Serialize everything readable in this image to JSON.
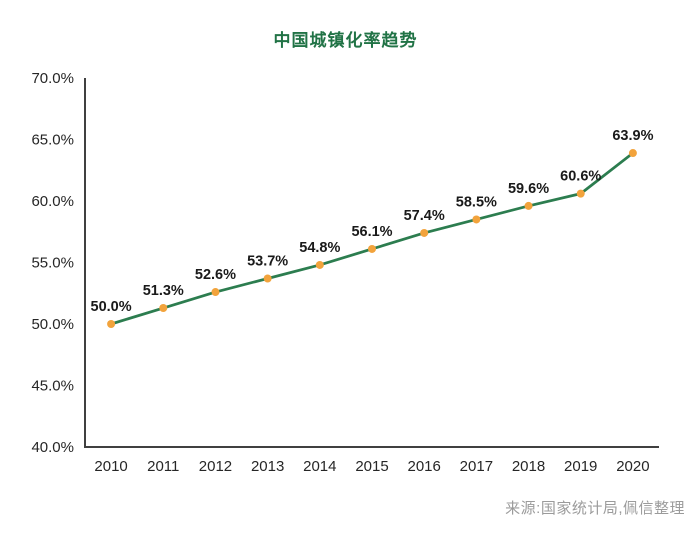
{
  "title": "中国城镇化率趋势",
  "source": "来源:国家统计局,佩信整理",
  "colors": {
    "title": "#217346",
    "line": "#2C7D4F",
    "marker": "#F2A33C",
    "axis": "#404040",
    "tick_text": "#262626",
    "source_text": "#9b9b9b"
  },
  "chart_data": {
    "type": "line",
    "title": "中国城镇化率趋势",
    "categories": [
      "2010",
      "2011",
      "2012",
      "2013",
      "2014",
      "2015",
      "2016",
      "2017",
      "2018",
      "2019",
      "2020"
    ],
    "values": [
      50.0,
      51.3,
      52.6,
      53.7,
      54.8,
      56.1,
      57.4,
      58.5,
      59.6,
      60.6,
      63.9
    ],
    "point_labels": [
      "50.0%",
      "51.3%",
      "52.6%",
      "53.7%",
      "54.8%",
      "56.1%",
      "57.4%",
      "58.5%",
      "59.6%",
      "60.6%",
      "63.9%"
    ],
    "xlabel": "",
    "ylabel": "",
    "ylim": [
      40,
      70
    ],
    "ytick_step": 5,
    "ytick_labels": [
      "40.0%",
      "45.0%",
      "50.0%",
      "55.0%",
      "60.0%",
      "65.0%",
      "70.0%"
    ],
    "grid": false,
    "legend": "none",
    "line_color": "#2C7D4F",
    "marker_color": "#F2A33C"
  }
}
